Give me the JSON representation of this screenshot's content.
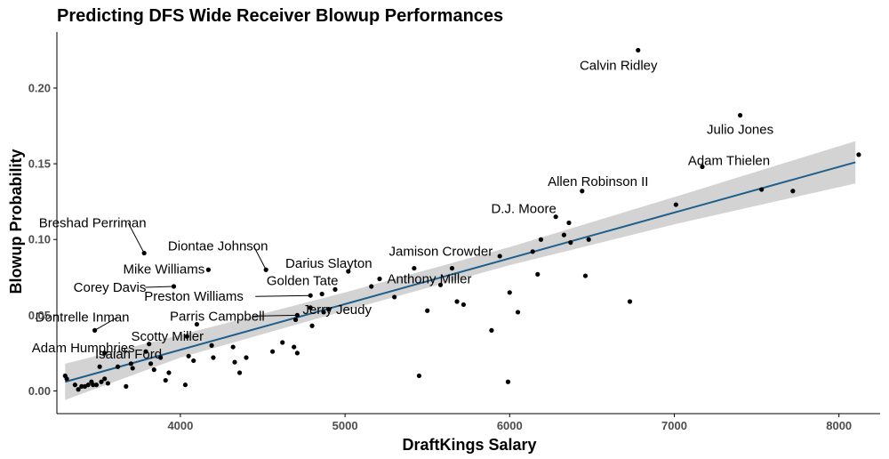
{
  "chart_data": {
    "type": "scatter",
    "title": "Predicting DFS Wide Receiver Blowup Performances",
    "xlabel": "DraftKings Salary",
    "ylabel": "Blowup Probability",
    "xlim": [
      3250,
      8250
    ],
    "ylim": [
      -0.015,
      0.237
    ],
    "x_ticks": [
      4000,
      5000,
      6000,
      7000,
      8000
    ],
    "y_ticks": [
      0.0,
      0.05,
      0.1,
      0.15,
      0.2
    ],
    "x_tick_labels": [
      "4000",
      "5000",
      "6000",
      "7000",
      "8000"
    ],
    "y_tick_labels": [
      "0.00",
      "0.05",
      "0.10",
      "0.15",
      "0.20"
    ],
    "grid": false,
    "legend": "none",
    "colors": {
      "point": "#000000",
      "trend_line": "#1f5f8b",
      "confidence_band": "#d3d3d3",
      "axis": "#000000",
      "tick_label": "#4d4d4d"
    },
    "trend": {
      "x": [
        3300,
        8100
      ],
      "y": [
        0.006,
        0.151
      ],
      "band_x": [
        3300,
        4000,
        5000,
        6000,
        7000,
        8100
      ],
      "band_upper": [
        0.018,
        0.037,
        0.065,
        0.095,
        0.128,
        0.165
      ],
      "band_lower": [
        -0.006,
        0.022,
        0.053,
        0.083,
        0.11,
        0.137
      ]
    },
    "labeled_points": [
      {
        "name": "Calvin Ridley",
        "x": 6780,
        "y": 0.225
      },
      {
        "name": "Julio Jones",
        "x": 7400,
        "y": 0.182
      },
      {
        "name": "Adam Thielen",
        "x": 7170,
        "y": 0.148
      },
      {
        "name": "Allen Robinson II",
        "x": 6440,
        "y": 0.132
      },
      {
        "name": "D.J. Moore",
        "x": 6280,
        "y": 0.115
      },
      {
        "name": "Jamison Crowder",
        "x": 5420,
        "y": 0.081
      },
      {
        "name": "Anthony Miller",
        "x": 5210,
        "y": 0.074
      },
      {
        "name": "Darius Slayton",
        "x": 5020,
        "y": 0.079
      },
      {
        "name": "Golden Tate",
        "x": 4860,
        "y": 0.064
      },
      {
        "name": "Jerry Jeudy",
        "x": 4790,
        "y": 0.055
      },
      {
        "name": "Diontae Johnson",
        "x": 4520,
        "y": 0.08
      },
      {
        "name": "Mike Williams",
        "x": 4170,
        "y": 0.08
      },
      {
        "name": "Breshad Perriman",
        "x": 3780,
        "y": 0.091
      },
      {
        "name": "Corey Davis",
        "x": 3960,
        "y": 0.069
      },
      {
        "name": "Preston Williams",
        "x": 4790,
        "y": 0.063
      },
      {
        "name": "Parris Campbell",
        "x": 4710,
        "y": 0.05
      },
      {
        "name": "Dontrelle Inman",
        "x": 3480,
        "y": 0.04
      },
      {
        "name": "Scotty Miller",
        "x": 4040,
        "y": 0.036
      },
      {
        "name": "Adam Humphries",
        "x": 3540,
        "y": 0.025
      },
      {
        "name": "Isaiah Ford",
        "x": 3620,
        "y": 0.016
      }
    ],
    "points": [
      {
        "x": 3300,
        "y": 0.01
      },
      {
        "x": 3310,
        "y": 0.008
      },
      {
        "x": 3360,
        "y": 0.004
      },
      {
        "x": 3380,
        "y": 0.001
      },
      {
        "x": 3400,
        "y": 0.003
      },
      {
        "x": 3420,
        "y": 0.003
      },
      {
        "x": 3440,
        "y": 0.004
      },
      {
        "x": 3460,
        "y": 0.006
      },
      {
        "x": 3470,
        "y": 0.004
      },
      {
        "x": 3490,
        "y": 0.004
      },
      {
        "x": 3510,
        "y": 0.016
      },
      {
        "x": 3520,
        "y": 0.006
      },
      {
        "x": 3540,
        "y": 0.008
      },
      {
        "x": 3560,
        "y": 0.005
      },
      {
        "x": 3670,
        "y": 0.003
      },
      {
        "x": 3700,
        "y": 0.018
      },
      {
        "x": 3710,
        "y": 0.015
      },
      {
        "x": 3790,
        "y": 0.026
      },
      {
        "x": 3810,
        "y": 0.031
      },
      {
        "x": 3820,
        "y": 0.018
      },
      {
        "x": 3840,
        "y": 0.014
      },
      {
        "x": 3880,
        "y": 0.022
      },
      {
        "x": 3910,
        "y": 0.007
      },
      {
        "x": 3930,
        "y": 0.012
      },
      {
        "x": 4030,
        "y": 0.004
      },
      {
        "x": 4050,
        "y": 0.023
      },
      {
        "x": 4080,
        "y": 0.02
      },
      {
        "x": 4100,
        "y": 0.044
      },
      {
        "x": 4190,
        "y": 0.03
      },
      {
        "x": 4200,
        "y": 0.022
      },
      {
        "x": 4320,
        "y": 0.029
      },
      {
        "x": 4330,
        "y": 0.019
      },
      {
        "x": 4360,
        "y": 0.012
      },
      {
        "x": 4400,
        "y": 0.022
      },
      {
        "x": 4560,
        "y": 0.026
      },
      {
        "x": 4620,
        "y": 0.032
      },
      {
        "x": 4690,
        "y": 0.029
      },
      {
        "x": 4700,
        "y": 0.047
      },
      {
        "x": 4710,
        "y": 0.025
      },
      {
        "x": 4800,
        "y": 0.043
      },
      {
        "x": 4870,
        "y": 0.052
      },
      {
        "x": 4900,
        "y": 0.054
      },
      {
        "x": 4940,
        "y": 0.067
      },
      {
        "x": 5160,
        "y": 0.069
      },
      {
        "x": 5300,
        "y": 0.062
      },
      {
        "x": 5450,
        "y": 0.01
      },
      {
        "x": 5500,
        "y": 0.053
      },
      {
        "x": 5580,
        "y": 0.07
      },
      {
        "x": 5650,
        "y": 0.081
      },
      {
        "x": 5680,
        "y": 0.059
      },
      {
        "x": 5720,
        "y": 0.057
      },
      {
        "x": 5890,
        "y": 0.04
      },
      {
        "x": 5940,
        "y": 0.089
      },
      {
        "x": 5990,
        "y": 0.006
      },
      {
        "x": 6000,
        "y": 0.065
      },
      {
        "x": 6050,
        "y": 0.052
      },
      {
        "x": 6140,
        "y": 0.092
      },
      {
        "x": 6170,
        "y": 0.077
      },
      {
        "x": 6190,
        "y": 0.1
      },
      {
        "x": 6330,
        "y": 0.103
      },
      {
        "x": 6360,
        "y": 0.111
      },
      {
        "x": 6370,
        "y": 0.098
      },
      {
        "x": 6460,
        "y": 0.076
      },
      {
        "x": 6480,
        "y": 0.1
      },
      {
        "x": 6730,
        "y": 0.059
      },
      {
        "x": 7010,
        "y": 0.123
      },
      {
        "x": 7530,
        "y": 0.133
      },
      {
        "x": 7720,
        "y": 0.132
      },
      {
        "x": 8120,
        "y": 0.156
      }
    ]
  }
}
